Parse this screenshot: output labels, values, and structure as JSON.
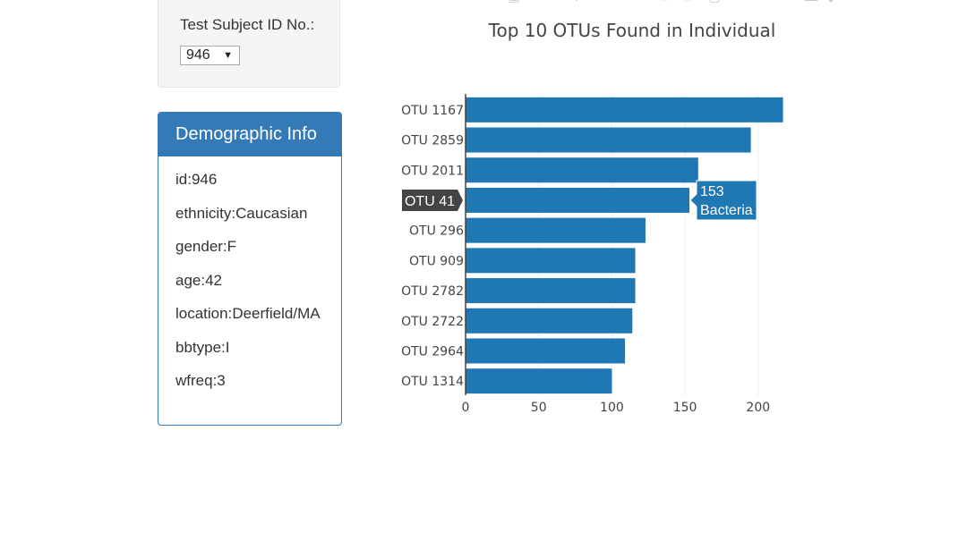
{
  "selector": {
    "label": "Test Subject ID No.:",
    "selected": "946"
  },
  "demographics": {
    "heading": "Demographic Info",
    "lines": [
      "id:946",
      "ethnicity:Caucasian",
      "gender:F",
      "age:42",
      "location:Deerfield/MA",
      "bbtype:I",
      "wfreq:3"
    ]
  },
  "chart_data": {
    "type": "bar",
    "orientation": "horizontal",
    "title": "Top 10 OTUs Found in Individual",
    "categories": [
      "OTU 1167",
      "OTU 2859",
      "OTU 2011",
      "OTU 41",
      "OTU 296",
      "OTU 909",
      "OTU 2782",
      "OTU 2722",
      "OTU 2964",
      "OTU 1314"
    ],
    "values": [
      217,
      195,
      159,
      153,
      123,
      116,
      116,
      114,
      109,
      100
    ],
    "xlim": [
      0,
      220
    ],
    "xticks": [
      "0",
      "50",
      "100",
      "150",
      "200"
    ],
    "bar_color": "#1f77b4",
    "grid": true,
    "hover": {
      "category": "OTU 41",
      "value": "153",
      "label": "Bacteria"
    }
  }
}
